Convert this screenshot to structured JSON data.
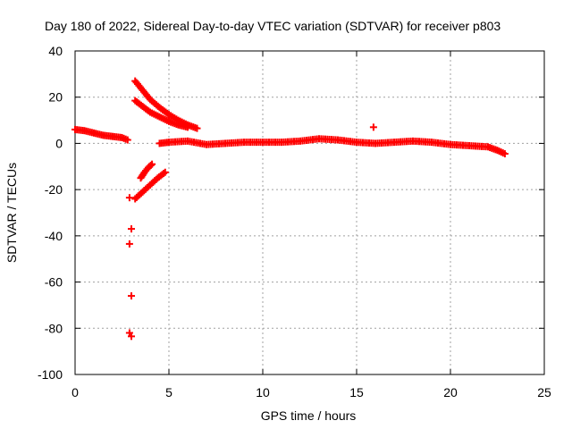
{
  "chart_data": {
    "type": "scatter",
    "title": "Day 180 of 2022, Sidereal Day-to-day VTEC variation (SDTVAR) for receiver p803",
    "xlabel": "GPS time / hours",
    "ylabel": "SDTVAR / TECUs",
    "xlim": [
      0,
      25
    ],
    "ylim": [
      -100,
      40
    ],
    "xticks": [
      0,
      5,
      10,
      15,
      20,
      25
    ],
    "yticks": [
      -100,
      -80,
      -60,
      -40,
      -20,
      0,
      20,
      40
    ],
    "grid": true,
    "marker": "plus",
    "series_color": "#ff0000",
    "segments": [
      {
        "name": "baseline-early",
        "points": [
          [
            0.0,
            6.0
          ],
          [
            0.5,
            5.5
          ],
          [
            1.0,
            4.5
          ],
          [
            1.5,
            3.5
          ],
          [
            2.0,
            3.0
          ],
          [
            2.5,
            2.5
          ],
          [
            2.8,
            1.5
          ]
        ]
      },
      {
        "name": "arc-upper-1",
        "points": [
          [
            3.2,
            27.0
          ],
          [
            3.6,
            23.0
          ],
          [
            4.0,
            19.0
          ],
          [
            4.5,
            15.5
          ],
          [
            5.0,
            12.5
          ],
          [
            5.5,
            10.0
          ],
          [
            6.0,
            8.0
          ],
          [
            6.5,
            6.5
          ]
        ]
      },
      {
        "name": "arc-upper-2",
        "points": [
          [
            3.2,
            18.5
          ],
          [
            3.6,
            16.0
          ],
          [
            4.0,
            13.5
          ],
          [
            4.5,
            11.5
          ],
          [
            5.0,
            9.5
          ],
          [
            5.5,
            8.0
          ],
          [
            6.0,
            7.0
          ]
        ]
      },
      {
        "name": "arc-lower-1",
        "points": [
          [
            3.5,
            -15.0
          ],
          [
            3.7,
            -12.5
          ],
          [
            3.9,
            -10.5
          ],
          [
            4.1,
            -9.0
          ]
        ]
      },
      {
        "name": "arc-lower-2",
        "points": [
          [
            3.2,
            -24.0
          ],
          [
            3.6,
            -21.0
          ],
          [
            4.0,
            -18.0
          ],
          [
            4.4,
            -15.0
          ],
          [
            4.8,
            -12.5
          ]
        ]
      },
      {
        "name": "drop-points",
        "points": [
          [
            2.9,
            -23.5
          ],
          [
            3.0,
            -37.0
          ],
          [
            2.9,
            -43.5
          ],
          [
            3.0,
            -66.0
          ],
          [
            2.9,
            -82.0
          ],
          [
            3.0,
            -83.5
          ]
        ]
      },
      {
        "name": "baseline-main",
        "points": [
          [
            4.5,
            0.0
          ],
          [
            5.0,
            0.5
          ],
          [
            6.0,
            1.0
          ],
          [
            7.0,
            -0.5
          ],
          [
            8.0,
            0.0
          ],
          [
            9.0,
            0.5
          ],
          [
            10.0,
            0.5
          ],
          [
            11.0,
            0.5
          ],
          [
            12.0,
            1.0
          ],
          [
            13.0,
            2.0
          ],
          [
            14.0,
            1.5
          ],
          [
            15.0,
            0.5
          ],
          [
            16.0,
            0.0
          ],
          [
            17.0,
            0.5
          ],
          [
            18.0,
            1.0
          ],
          [
            19.0,
            0.5
          ],
          [
            20.0,
            -0.5
          ],
          [
            21.0,
            -1.0
          ],
          [
            22.0,
            -1.5
          ],
          [
            22.5,
            -3.0
          ],
          [
            22.9,
            -4.5
          ]
        ]
      },
      {
        "name": "outlier",
        "points": [
          [
            15.9,
            7.0
          ]
        ]
      }
    ]
  }
}
